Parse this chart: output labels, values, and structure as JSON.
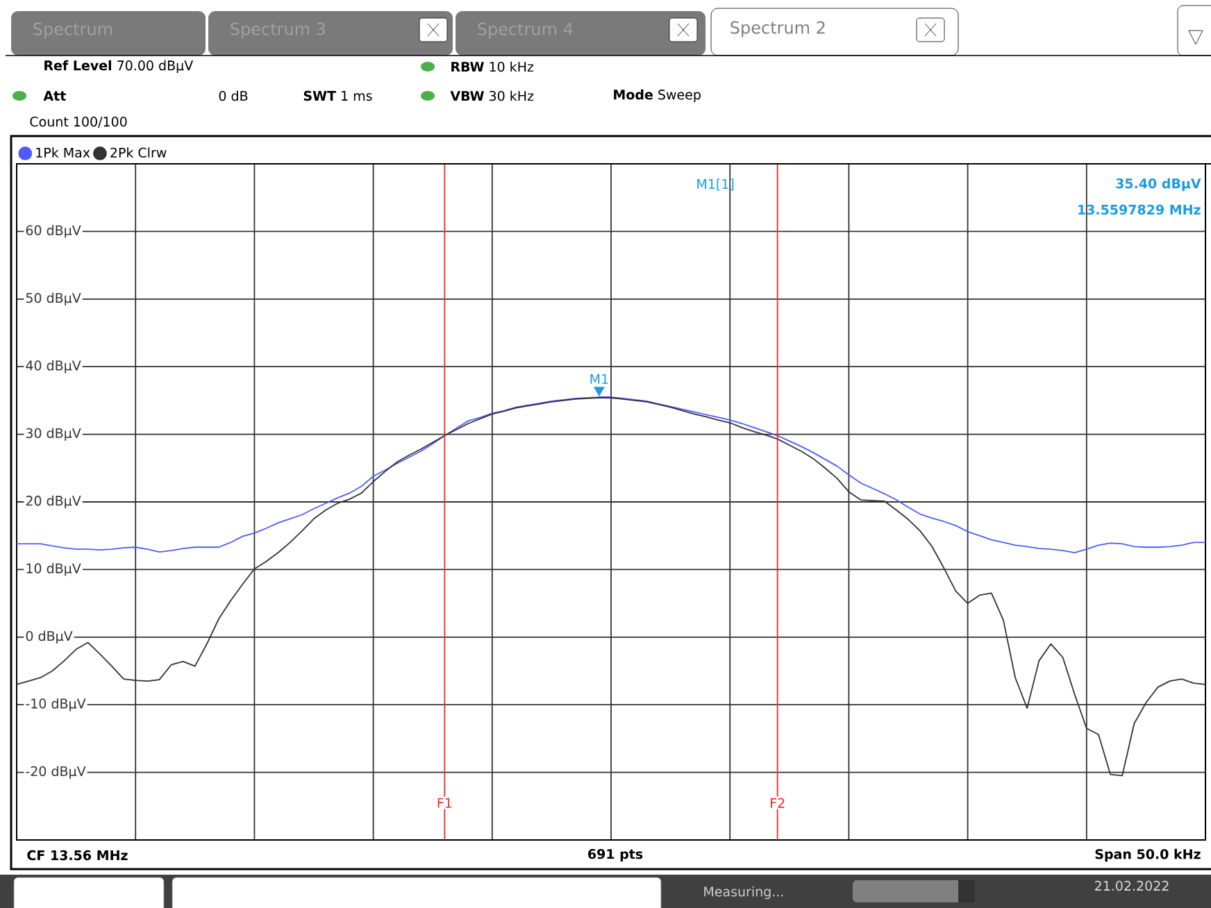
{
  "chart_data": {
    "type": "line",
    "title": "Spectrum 2",
    "annotations": [
      "Spectrum",
      "Spectrum 3",
      "Spectrum 4",
      "**Ref Level** 70.00 dBµV",
      "**Att**",
      "0 dB",
      "**SWT** 1 ms",
      "**RBW** 10 kHz",
      "**VBW** 30 kHz",
      "**Mode** Sweep",
      "Count 100/100",
      "M1[1]",
      "35.40 dBµV",
      "13.5597829 MHz",
      "CF 13.56 MHz",
      "691 pts",
      "Span 50.0 kHz",
      "Measuring...",
      "21.02.2022",
      "F1",
      "F2",
      {
        "text": "M1",
        "y": 36.4
      }
    ],
    "categories": [
      null,
      null,
      null,
      null,
      null,
      null,
      null,
      null,
      null,
      null,
      null,
      null,
      null,
      null,
      null,
      null,
      null,
      null,
      null,
      null,
      null,
      null,
      null,
      null,
      null,
      null,
      null,
      null,
      null,
      null,
      null,
      null,
      null,
      null,
      null,
      null,
      null,
      null,
      null,
      null,
      null,
      null,
      null,
      null,
      null,
      null,
      null,
      null,
      null,
      null,
      null,
      null,
      null,
      null,
      null,
      null,
      null,
      null,
      null,
      null,
      null,
      null,
      null,
      null,
      null,
      null,
      null,
      null,
      null,
      null,
      null,
      null,
      null,
      null,
      null,
      null,
      null,
      null,
      null,
      null,
      null,
      null,
      null,
      null,
      null,
      null,
      null,
      null,
      null,
      null,
      null,
      null,
      null,
      null,
      null,
      null,
      null,
      null,
      null,
      null,
      null
    ],
    "series": [
      {
        "name": "1Pk Max",
        "color": "#4f5bff",
        "values": [
          13.8,
          13.8,
          13.8,
          13.5,
          13.2,
          13.0,
          13.0,
          12.9,
          13.0,
          13.2,
          13.3,
          13.0,
          12.6,
          12.8,
          13.1,
          13.3,
          13.3,
          13.3,
          14.0,
          14.9,
          15.4,
          16.1,
          16.9,
          17.5,
          18.1,
          19.0,
          19.8,
          20.6,
          21.3,
          22.3,
          23.8,
          24.7,
          25.7,
          26.6,
          27.5,
          28.6,
          29.8,
          30.9,
          32.0,
          32.5,
          33.1,
          33.5,
          34.0,
          34.3,
          34.6,
          34.9,
          35.1,
          35.3,
          35.4,
          35.5,
          35.5,
          35.3,
          35.1,
          34.9,
          34.5,
          34.1,
          33.7,
          33.3,
          32.9,
          32.5,
          32.1,
          31.6,
          31.0,
          30.4,
          29.8,
          29.0,
          28.2,
          27.3,
          26.3,
          25.3,
          24.0,
          22.8,
          22.0,
          21.2,
          20.3,
          19.2,
          18.2,
          17.6,
          17.1,
          16.5,
          15.6,
          15.0,
          14.4,
          14.0,
          13.6,
          13.4,
          13.1,
          13.0,
          12.8,
          12.5,
          13.0,
          13.6,
          13.9,
          13.8,
          13.4,
          13.3,
          13.3,
          13.4,
          13.6,
          14.0,
          14.0
        ]
      },
      {
        "name": "2Pk Clrw",
        "color": "#333333",
        "values": [
          -7.0,
          -6.5,
          -6.0,
          -5.0,
          -3.5,
          -1.8,
          -0.8,
          -2.5,
          -4.3,
          -6.2,
          -6.4,
          -6.5,
          -6.3,
          -4.1,
          -3.6,
          -4.3,
          -1.0,
          2.7,
          5.4,
          7.8,
          10.1,
          11.2,
          12.5,
          14.0,
          15.7,
          17.5,
          18.8,
          19.8,
          20.4,
          21.3,
          23.0,
          24.5,
          25.9,
          26.9,
          27.8,
          28.8,
          29.8,
          30.7,
          31.6,
          32.3,
          33.0,
          33.4,
          33.9,
          34.2,
          34.5,
          34.8,
          35.0,
          35.2,
          35.3,
          35.4,
          35.4,
          35.2,
          35.0,
          34.8,
          34.4,
          34.0,
          33.5,
          33.0,
          32.6,
          32.1,
          31.7,
          31.0,
          30.4,
          29.9,
          29.3,
          28.4,
          27.5,
          26.4,
          25.0,
          23.5,
          21.5,
          20.3,
          20.2,
          20.1,
          18.8,
          17.4,
          15.7,
          13.4,
          10.2,
          6.8,
          5.0,
          6.2,
          6.5,
          2.5,
          -6.0,
          -10.5,
          -3.5,
          -1.0,
          -3.0,
          -8.5,
          -13.5,
          -14.4,
          -20.3,
          -20.5,
          -12.8,
          -9.7,
          -7.4,
          -6.5,
          -6.2,
          -6.8,
          -7.0
        ]
      }
    ],
    "ylim": [
      -30,
      70
    ],
    "yticks": [
      {
        "value": -20,
        "label": "-20 dBµV"
      },
      {
        "value": -10,
        "label": "-10 dBµV"
      },
      {
        "value": 0,
        "label": "0 dBµV"
      },
      {
        "value": 10,
        "label": "10 dBµV"
      },
      {
        "value": 20,
        "label": "20 dBµV"
      },
      {
        "value": 30,
        "label": "30 dBµV"
      },
      {
        "value": 40,
        "label": "40 dBµV"
      },
      {
        "value": 50,
        "label": "50 dBµV"
      },
      {
        "value": 60,
        "label": "60 dBµV"
      }
    ],
    "tick_labels": "y",
    "grid": true,
    "legend": "top left",
    "marker": "none",
    "line_style": "solid"
  }
}
